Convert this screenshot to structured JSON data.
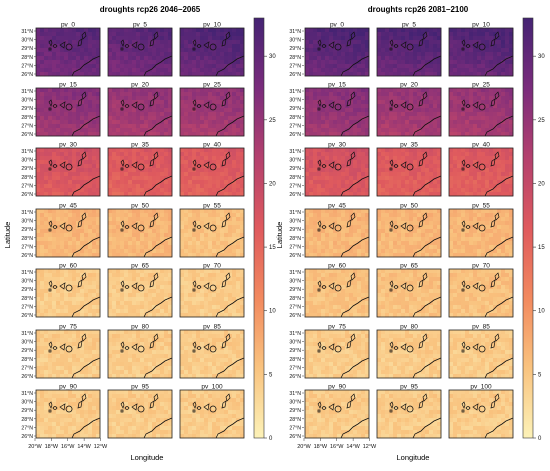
{
  "chart_data": [
    {
      "type": "heatmap",
      "title": "droughts rcp26 2046–2065",
      "xlabel": "Longitude",
      "ylabel": "Latitude",
      "x_ticks": [
        "20°W",
        "18°W",
        "16°W",
        "14°W",
        "12°W"
      ],
      "y_ticks": [
        "31°N",
        "30°N",
        "29°N",
        "28°N",
        "27°N",
        "26°N"
      ],
      "colorbar_ticks": [
        0,
        5,
        10,
        15,
        20,
        25,
        30
      ],
      "clim": [
        0,
        33
      ],
      "panels": [
        {
          "label": "pv_0",
          "level": 27
        },
        {
          "label": "pv_5",
          "level": 27
        },
        {
          "label": "pv_10",
          "level": 28
        },
        {
          "label": "pv_15",
          "level": 23
        },
        {
          "label": "pv_20",
          "level": 22
        },
        {
          "label": "pv_25",
          "level": 22
        },
        {
          "label": "pv_30",
          "level": 16
        },
        {
          "label": "pv_35",
          "level": 15
        },
        {
          "label": "pv_40",
          "level": 15
        },
        {
          "label": "pv_45",
          "level": 6
        },
        {
          "label": "pv_50",
          "level": 6
        },
        {
          "label": "pv_55",
          "level": 5
        },
        {
          "label": "pv_60",
          "level": 4
        },
        {
          "label": "pv_65",
          "level": 4
        },
        {
          "label": "pv_70",
          "level": 4
        },
        {
          "label": "pv_75",
          "level": 4
        },
        {
          "label": "pv_80",
          "level": 4
        },
        {
          "label": "pv_85",
          "level": 4
        },
        {
          "label": "pv_90",
          "level": 4
        },
        {
          "label": "pv_95",
          "level": 4
        },
        {
          "label": "pv_100",
          "level": 4
        }
      ]
    },
    {
      "type": "heatmap",
      "title": "droughts rcp26 2081–2100",
      "xlabel": "Longitude",
      "ylabel": "Latitude",
      "x_ticks": [
        "20°W",
        "18°W",
        "16°W",
        "14°W",
        "12°W"
      ],
      "y_ticks": [
        "31°N",
        "30°N",
        "29°N",
        "28°N",
        "27°N",
        "26°N"
      ],
      "colorbar_ticks": [
        0,
        5,
        10,
        15,
        20,
        25,
        30
      ],
      "clim": [
        0,
        33
      ],
      "panels": [
        {
          "label": "pv_0",
          "level": 28
        },
        {
          "label": "pv_5",
          "level": 28
        },
        {
          "label": "pv_10",
          "level": 28
        },
        {
          "label": "pv_15",
          "level": 23
        },
        {
          "label": "pv_20",
          "level": 22
        },
        {
          "label": "pv_25",
          "level": 22
        },
        {
          "label": "pv_30",
          "level": 16
        },
        {
          "label": "pv_35",
          "level": 15
        },
        {
          "label": "pv_40",
          "level": 15
        },
        {
          "label": "pv_45",
          "level": 6
        },
        {
          "label": "pv_50",
          "level": 6
        },
        {
          "label": "pv_55",
          "level": 6
        },
        {
          "label": "pv_60",
          "level": 5
        },
        {
          "label": "pv_65",
          "level": 5
        },
        {
          "label": "pv_70",
          "level": 5
        },
        {
          "label": "pv_75",
          "level": 4
        },
        {
          "label": "pv_80",
          "level": 4
        },
        {
          "label": "pv_85",
          "level": 4
        },
        {
          "label": "pv_90",
          "level": 4
        },
        {
          "label": "pv_95",
          "level": 4
        },
        {
          "label": "pv_100",
          "level": 4
        }
      ]
    }
  ],
  "colormap": [
    "#fcf2b8",
    "#f9c27e",
    "#f28a5f",
    "#df5a5e",
    "#b3406e",
    "#7b2c7c",
    "#452373"
  ]
}
